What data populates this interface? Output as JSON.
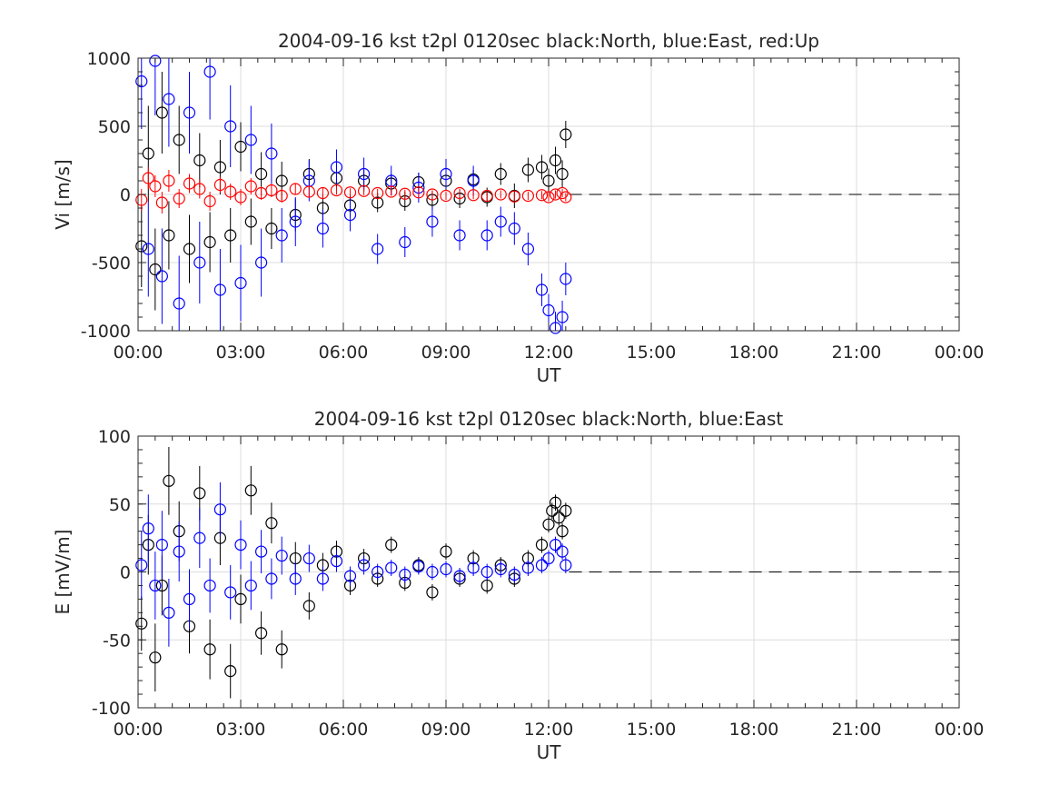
{
  "chart_data": [
    {
      "type": "scatter",
      "title": "2004-09-16 kst t2pl 0120sec black:North, blue:East, red:Up",
      "xlabel": "UT",
      "ylabel": "Vi [m/s]",
      "xlim": [
        0,
        24
      ],
      "ylim": [
        -1000,
        1000
      ],
      "x_tick_labels": [
        "00:00",
        "03:00",
        "06:00",
        "09:00",
        "12:00",
        "15:00",
        "18:00",
        "21:00",
        "00:00"
      ],
      "y_tick_values": [
        -1000,
        -500,
        0,
        500,
        1000
      ],
      "y_tick_labels": [
        "-1000",
        "-500",
        "0",
        "500",
        "1000"
      ],
      "grid": true,
      "marker": "open-circle",
      "error_bars": true,
      "zero_line": "dashed-black",
      "data_time_range_hours": [
        0,
        12.6
      ],
      "series": [
        {
          "name": "North",
          "color": "#000000",
          "x": [
            0.1,
            0.3,
            0.5,
            0.7,
            0.9,
            1.2,
            1.5,
            1.8,
            2.1,
            2.4,
            2.7,
            3.0,
            3.3,
            3.6,
            3.9,
            4.2,
            4.6,
            5.0,
            5.4,
            5.8,
            6.2,
            6.6,
            7.0,
            7.4,
            7.8,
            8.2,
            8.6,
            9.0,
            9.4,
            9.8,
            10.2,
            10.6,
            11.0,
            11.4,
            11.8,
            12.0,
            12.2,
            12.4,
            12.5
          ],
          "y": [
            -380,
            300,
            -550,
            600,
            -300,
            400,
            -400,
            250,
            -350,
            200,
            -300,
            350,
            -200,
            150,
            -250,
            100,
            -150,
            150,
            -100,
            120,
            -80,
            100,
            -60,
            80,
            -50,
            90,
            -40,
            100,
            -30,
            110,
            -20,
            150,
            -10,
            180,
            200,
            100,
            250,
            150,
            440
          ],
          "error": [
            300,
            350,
            300,
            300,
            250,
            250,
            250,
            200,
            220,
            200,
            200,
            180,
            170,
            160,
            150,
            140,
            120,
            110,
            100,
            90,
            80,
            80,
            70,
            70,
            70,
            70,
            70,
            70,
            70,
            70,
            70,
            80,
            90,
            90,
            90,
            90,
            100,
            100,
            100
          ]
        },
        {
          "name": "East",
          "color": "#0000ff",
          "x": [
            0.1,
            0.3,
            0.5,
            0.7,
            0.9,
            1.2,
            1.5,
            1.8,
            2.1,
            2.4,
            2.7,
            3.0,
            3.3,
            3.6,
            3.9,
            4.2,
            4.6,
            5.0,
            5.4,
            5.8,
            6.2,
            6.6,
            7.0,
            7.4,
            7.8,
            8.2,
            8.6,
            9.0,
            9.4,
            9.8,
            10.2,
            10.6,
            11.0,
            11.4,
            11.8,
            12.0,
            12.2,
            12.4,
            12.5
          ],
          "y": [
            830,
            -400,
            980,
            -600,
            700,
            -800,
            600,
            -500,
            900,
            -700,
            500,
            -650,
            400,
            -500,
            300,
            -300,
            -200,
            100,
            -250,
            200,
            -150,
            150,
            -400,
            100,
            -350,
            50,
            -200,
            150,
            -300,
            100,
            -300,
            -200,
            -250,
            -400,
            -700,
            -850,
            -980,
            -900,
            -620
          ],
          "error": [
            350,
            350,
            400,
            350,
            350,
            350,
            300,
            300,
            350,
            300,
            300,
            280,
            250,
            250,
            220,
            200,
            180,
            150,
            140,
            130,
            120,
            120,
            110,
            110,
            110,
            110,
            110,
            110,
            110,
            110,
            110,
            110,
            120,
            120,
            120,
            120,
            120,
            120,
            120
          ]
        },
        {
          "name": "Up",
          "color": "#ff0000",
          "x": [
            0.1,
            0.3,
            0.5,
            0.7,
            0.9,
            1.2,
            1.5,
            1.8,
            2.1,
            2.4,
            2.7,
            3.0,
            3.3,
            3.6,
            3.9,
            4.2,
            4.6,
            5.0,
            5.4,
            5.8,
            6.2,
            6.6,
            7.0,
            7.4,
            7.8,
            8.2,
            8.6,
            9.0,
            9.4,
            9.8,
            10.2,
            10.6,
            11.0,
            11.4,
            11.8,
            12.0,
            12.2,
            12.4,
            12.5
          ],
          "y": [
            -40,
            120,
            60,
            -60,
            100,
            -30,
            80,
            40,
            -50,
            70,
            20,
            -20,
            60,
            10,
            30,
            -10,
            40,
            20,
            10,
            30,
            15,
            25,
            10,
            20,
            5,
            15,
            0,
            -10,
            10,
            -5,
            -10,
            0,
            -15,
            -10,
            -5,
            -20,
            0,
            10,
            -20
          ],
          "error": [
            80,
            80,
            80,
            80,
            80,
            70,
            70,
            70,
            70,
            60,
            60,
            60,
            60,
            50,
            50,
            50,
            40,
            40,
            40,
            30,
            30,
            30,
            30,
            30,
            30,
            30,
            30,
            30,
            30,
            30,
            30,
            30,
            30,
            30,
            30,
            30,
            30,
            30,
            30
          ]
        }
      ]
    },
    {
      "type": "scatter",
      "title": "2004-09-16 kst t2pl 0120sec black:North, blue:East",
      "xlabel": "UT",
      "ylabel": "E [mV/m]",
      "xlim": [
        0,
        24
      ],
      "ylim": [
        -100,
        100
      ],
      "x_tick_labels": [
        "00:00",
        "03:00",
        "06:00",
        "09:00",
        "12:00",
        "15:00",
        "18:00",
        "21:00",
        "00:00"
      ],
      "y_tick_values": [
        -100,
        -50,
        0,
        50,
        100
      ],
      "y_tick_labels": [
        "-100",
        "-50",
        "0",
        "50",
        "100"
      ],
      "grid": true,
      "marker": "open-circle",
      "error_bars": true,
      "zero_line": "dashed-black",
      "data_time_range_hours": [
        0,
        12.6
      ],
      "series": [
        {
          "name": "North",
          "color": "#000000",
          "x": [
            0.1,
            0.3,
            0.5,
            0.7,
            0.9,
            1.2,
            1.5,
            1.8,
            2.1,
            2.4,
            2.7,
            3.0,
            3.3,
            3.6,
            3.9,
            4.2,
            4.6,
            5.0,
            5.4,
            5.8,
            6.2,
            6.6,
            7.0,
            7.4,
            7.8,
            8.2,
            8.6,
            9.0,
            9.4,
            9.8,
            10.2,
            10.6,
            11.0,
            11.4,
            11.8,
            12.0,
            12.1,
            12.2,
            12.3,
            12.4,
            12.5
          ],
          "y": [
            -38,
            20,
            -63,
            -10,
            67,
            30,
            -40,
            58,
            -57,
            25,
            -73,
            -20,
            60,
            -45,
            36,
            -57,
            10,
            -25,
            5,
            15,
            -10,
            10,
            -5,
            20,
            -8,
            5,
            -15,
            15,
            -5,
            10,
            -10,
            5,
            -5,
            10,
            20,
            35,
            45,
            51,
            40,
            30,
            45
          ],
          "error": [
            20,
            22,
            25,
            22,
            25,
            22,
            20,
            20,
            22,
            20,
            20,
            18,
            18,
            16,
            15,
            14,
            12,
            10,
            9,
            8,
            7,
            7,
            6,
            6,
            6,
            6,
            6,
            6,
            6,
            6,
            6,
            6,
            6,
            6,
            6,
            6,
            6,
            6,
            6,
            6,
            6
          ]
        },
        {
          "name": "East",
          "color": "#0000ff",
          "x": [
            0.1,
            0.3,
            0.5,
            0.7,
            0.9,
            1.2,
            1.5,
            1.8,
            2.1,
            2.4,
            2.7,
            3.0,
            3.3,
            3.6,
            3.9,
            4.2,
            4.6,
            5.0,
            5.4,
            5.8,
            6.2,
            6.6,
            7.0,
            7.4,
            7.8,
            8.2,
            8.6,
            9.0,
            9.4,
            9.8,
            10.2,
            10.6,
            11.0,
            11.4,
            11.8,
            12.0,
            12.2,
            12.4,
            12.5
          ],
          "y": [
            5,
            32,
            -10,
            20,
            -30,
            15,
            -20,
            25,
            -10,
            46,
            -15,
            20,
            -10,
            15,
            -5,
            12,
            -5,
            10,
            -5,
            8,
            -3,
            5,
            0,
            3,
            -2,
            4,
            0,
            2,
            -3,
            3,
            0,
            2,
            -2,
            3,
            5,
            10,
            20,
            15,
            5
          ],
          "error": [
            25,
            25,
            25,
            25,
            25,
            22,
            22,
            22,
            20,
            20,
            20,
            18,
            18,
            16,
            15,
            14,
            12,
            10,
            9,
            8,
            7,
            7,
            6,
            6,
            6,
            6,
            6,
            6,
            6,
            6,
            6,
            6,
            6,
            6,
            6,
            6,
            6,
            6,
            6
          ]
        }
      ]
    }
  ]
}
